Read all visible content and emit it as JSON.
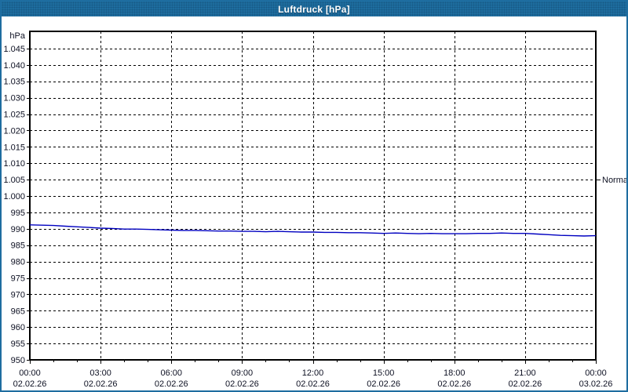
{
  "window": {
    "title": "Luftdruck [hPa]"
  },
  "colors": {
    "title_bar_bg": "#1e6d9f",
    "window_border": "#1e6da0",
    "plot_bg": "#ffffff",
    "grid": "#000000",
    "axis_text": "#0d1022",
    "series_line": "#0000c0",
    "annotation_text": "#0d1022"
  },
  "chart_data": {
    "type": "line",
    "title": "Luftdruck [hPa]",
    "unit_label": "hPa",
    "grid": "dashed",
    "y_axis": {
      "min": 950,
      "view_max": 1050,
      "tick_step": 5,
      "tick_values": [
        1045,
        1040,
        1035,
        1030,
        1025,
        1020,
        1015,
        1010,
        1005,
        1000,
        995,
        990,
        985,
        980,
        975,
        970,
        965,
        960,
        955,
        950
      ],
      "tick_labels": [
        "1.045",
        "1.040",
        "1.035",
        "1.030",
        "1.025",
        "1.020",
        "1.015",
        "1.010",
        "1.005",
        "1.000",
        "995",
        "990",
        "985",
        "980",
        "975",
        "970",
        "965",
        "960",
        "955",
        "950"
      ]
    },
    "x_axis": {
      "hours_span": 24,
      "major_tick_hours": 3,
      "minor_tick_hours": 1,
      "ticks": [
        {
          "time": "00:00",
          "date": "02.02.26"
        },
        {
          "time": "03:00",
          "date": "02.02.26"
        },
        {
          "time": "06:00",
          "date": "02.02.26"
        },
        {
          "time": "09:00",
          "date": "02.02.26"
        },
        {
          "time": "12:00",
          "date": "02.02.26"
        },
        {
          "time": "15:00",
          "date": "02.02.26"
        },
        {
          "time": "18:00",
          "date": "02.02.26"
        },
        {
          "time": "21:00",
          "date": "02.02.26"
        },
        {
          "time": "00:00",
          "date": "03.02.26"
        }
      ]
    },
    "annotations": [
      {
        "label": "Normal",
        "value": 1005
      }
    ],
    "series": [
      {
        "name": "Luftdruck",
        "color": "#0000c0",
        "start_hour": 0,
        "step_hours": 0.5,
        "values": [
          991.2,
          991.1,
          991.0,
          990.8,
          990.6,
          990.4,
          990.2,
          990.1,
          989.9,
          989.9,
          989.8,
          989.7,
          989.6,
          989.5,
          989.5,
          989.4,
          989.3,
          989.3,
          989.2,
          989.2,
          989.1,
          989.2,
          989.1,
          989.0,
          989.0,
          988.9,
          988.9,
          988.8,
          988.8,
          988.7,
          988.6,
          988.7,
          988.6,
          988.5,
          988.6,
          988.5,
          988.5,
          988.5,
          988.6,
          988.6,
          988.7,
          988.6,
          988.6,
          988.4,
          988.2,
          988.0,
          987.9,
          987.8,
          987.9
        ]
      }
    ]
  }
}
